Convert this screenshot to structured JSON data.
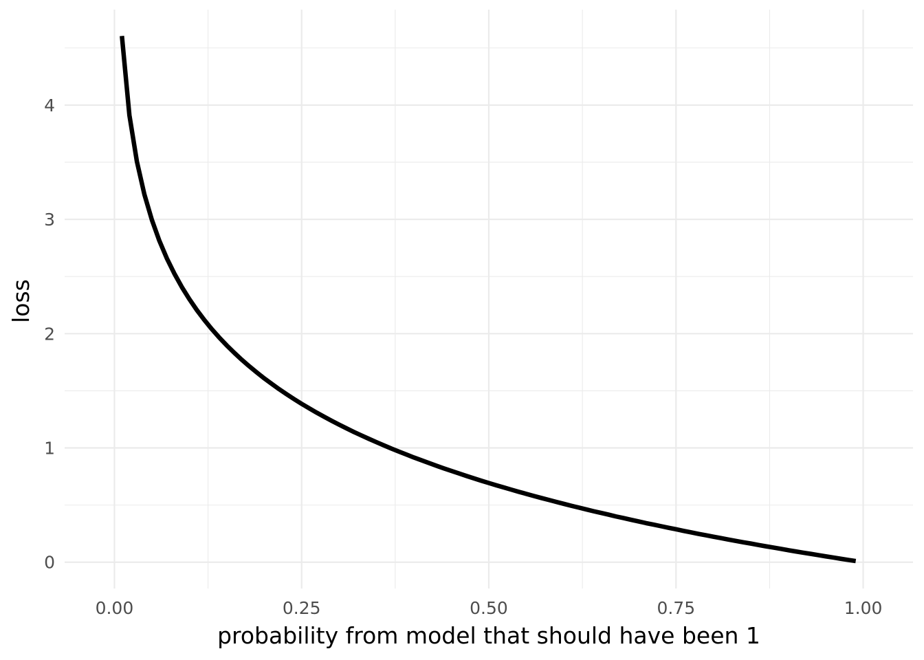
{
  "chart_data": {
    "type": "line",
    "title": "",
    "xlabel": "probability from model that should have been 1",
    "ylabel": "loss",
    "xlim": [
      -0.0665,
      1.0665
    ],
    "ylim": [
      -0.2302,
      4.8354
    ],
    "x_ticks": [
      0.0,
      0.25,
      0.5,
      0.75,
      1.0
    ],
    "x_tick_labels": [
      "0.00",
      "0.25",
      "0.50",
      "0.75",
      "1.00"
    ],
    "y_ticks": [
      0,
      1,
      2,
      3,
      4
    ],
    "y_tick_labels": [
      "0",
      "1",
      "2",
      "3",
      "4"
    ],
    "grid": true,
    "legend": "none",
    "series": [
      {
        "color": "#000000",
        "x": [
          0.01,
          0.02,
          0.03,
          0.04,
          0.05,
          0.06,
          0.07,
          0.08,
          0.09,
          0.1,
          0.11,
          0.12,
          0.13,
          0.14,
          0.15,
          0.16,
          0.17,
          0.18,
          0.19,
          0.2,
          0.21,
          0.22,
          0.23,
          0.24,
          0.25,
          0.26,
          0.27,
          0.28,
          0.29,
          0.3,
          0.31,
          0.32,
          0.33,
          0.34,
          0.35,
          0.36,
          0.37,
          0.38,
          0.39,
          0.4,
          0.41,
          0.42,
          0.43,
          0.44,
          0.45,
          0.46,
          0.47,
          0.48,
          0.49,
          0.5,
          0.51,
          0.52,
          0.53,
          0.54,
          0.55,
          0.56,
          0.57,
          0.58,
          0.59,
          0.6,
          0.61,
          0.62,
          0.63,
          0.64,
          0.65,
          0.66,
          0.67,
          0.68,
          0.69,
          0.7,
          0.71,
          0.72,
          0.73,
          0.74,
          0.75,
          0.76,
          0.77,
          0.78,
          0.79,
          0.8,
          0.81,
          0.82,
          0.83,
          0.84,
          0.85,
          0.86,
          0.87,
          0.88,
          0.89,
          0.9,
          0.91,
          0.92,
          0.93,
          0.94,
          0.95,
          0.96,
          0.97,
          0.98,
          0.99
        ],
        "y": [
          4.605,
          3.912,
          3.507,
          3.219,
          2.996,
          2.813,
          2.659,
          2.526,
          2.408,
          2.303,
          2.207,
          2.12,
          2.04,
          1.966,
          1.897,
          1.833,
          1.772,
          1.715,
          1.661,
          1.609,
          1.561,
          1.514,
          1.47,
          1.427,
          1.386,
          1.347,
          1.309,
          1.273,
          1.238,
          1.204,
          1.171,
          1.139,
          1.109,
          1.079,
          1.05,
          1.022,
          0.994,
          0.968,
          0.942,
          0.916,
          0.892,
          0.868,
          0.844,
          0.821,
          0.799,
          0.777,
          0.755,
          0.734,
          0.713,
          0.693,
          0.673,
          0.654,
          0.635,
          0.616,
          0.598,
          0.58,
          0.562,
          0.545,
          0.528,
          0.511,
          0.494,
          0.478,
          0.462,
          0.446,
          0.431,
          0.416,
          0.4,
          0.386,
          0.371,
          0.357,
          0.342,
          0.329,
          0.315,
          0.301,
          0.288,
          0.274,
          0.261,
          0.248,
          0.236,
          0.223,
          0.211,
          0.198,
          0.186,
          0.174,
          0.163,
          0.151,
          0.139,
          0.128,
          0.117,
          0.105,
          0.094,
          0.083,
          0.073,
          0.062,
          0.051,
          0.041,
          0.03,
          0.02,
          0.01
        ]
      }
    ]
  }
}
